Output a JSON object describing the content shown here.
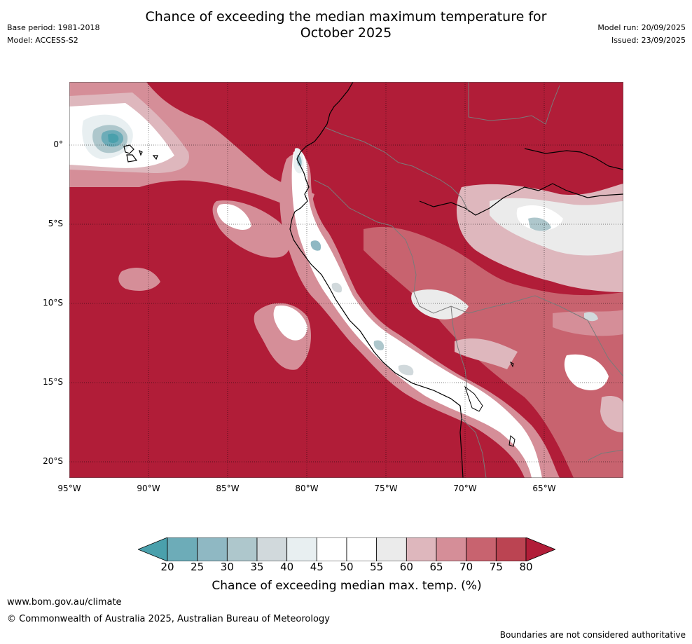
{
  "header": {
    "title_line1": "Chance of exceeding the median maximum temperature for",
    "title_line2": "October 2025",
    "base_period": "Base period: 1981-2018",
    "model": "Model: ACCESS-S2",
    "model_run": "Model run: 20/09/2025",
    "issued": "Issued: 23/09/2025"
  },
  "map": {
    "lat_ticks": [
      "0°",
      "5°S",
      "10°S",
      "15°S",
      "20°S"
    ],
    "lon_ticks": [
      "95°W",
      "90°W",
      "85°W",
      "80°W",
      "75°W",
      "70°W",
      "65°W"
    ],
    "background_color": "#b11d38"
  },
  "colorbar": {
    "labels": [
      "20",
      "25",
      "30",
      "35",
      "40",
      "45",
      "50",
      "55",
      "60",
      "65",
      "70",
      "75",
      "80"
    ],
    "colors": [
      "#4aa0ac",
      "#6dacb8",
      "#8fb8c3",
      "#aec7cc",
      "#d1d9dc",
      "#e8eff1",
      "#ffffff",
      "#ffffff",
      "#ebebeb",
      "#deb7bd",
      "#d58e98",
      "#c8636f",
      "#bb4452",
      "#b11d38"
    ],
    "title": "Chance of exceeding median max. temp. (%)"
  },
  "footer": {
    "url": "www.bom.gov.au/climate",
    "copyright": "© Commonwealth of Australia 2025, Australian Bureau of Meteorology",
    "disclaimer": "Boundaries are not considered authoritative"
  }
}
